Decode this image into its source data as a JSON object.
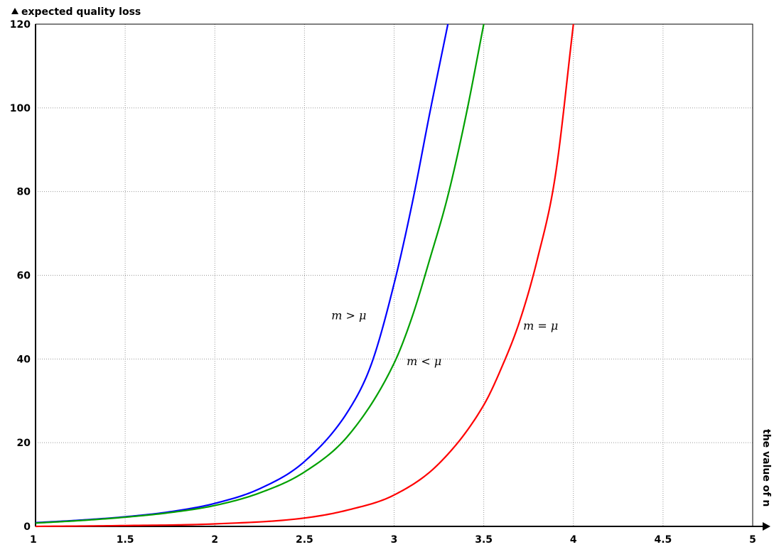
{
  "chart_data": {
    "type": "line",
    "ylabel": "expected quality loss",
    "xlabel": "the value of n",
    "xlim": [
      1,
      5
    ],
    "ylim": [
      0,
      120
    ],
    "x_ticks": [
      "1",
      "1.5",
      "2",
      "2.5",
      "3",
      "3.5",
      "4",
      "4.5",
      "5"
    ],
    "y_ticks": [
      "0",
      "20",
      "40",
      "60",
      "80",
      "100",
      "120"
    ],
    "grid": true,
    "series": [
      {
        "name": "m > μ",
        "color": "#0000ff",
        "x": [
          1,
          1.25,
          1.5,
          1.75,
          2,
          2.25,
          2.5,
          2.75,
          2.875,
          3,
          3.1,
          3.2,
          3.3
        ],
        "y": [
          0.9,
          1.5,
          2.3,
          3.5,
          5.5,
          9,
          15.5,
          28,
          39,
          58,
          77,
          99,
          120
        ]
      },
      {
        "name": "m < μ",
        "color": "#00a000",
        "x": [
          1,
          1.25,
          1.5,
          1.75,
          2,
          2.25,
          2.5,
          2.75,
          3,
          3.1,
          3.2,
          3.3,
          3.4,
          3.5
        ],
        "y": [
          0.8,
          1.4,
          2.2,
          3.3,
          5,
          8,
          13,
          22,
          39,
          50,
          64,
          79,
          98,
          120
        ]
      },
      {
        "name": "m = μ",
        "color": "#ff0000",
        "x": [
          1,
          1.5,
          2,
          2.5,
          2.75,
          3,
          3.25,
          3.5,
          3.6,
          3.7,
          3.8,
          3.9,
          4
        ],
        "y": [
          0,
          0.2,
          0.6,
          2,
          4,
          7.5,
          15,
          29,
          38,
          49,
          64,
          84,
          120
        ]
      }
    ],
    "annotations": [
      {
        "text": "m > μ",
        "x": 2.65,
        "y": 49.5
      },
      {
        "text": "m < μ",
        "x": 3.07,
        "y": 38.5
      },
      {
        "text": "m = μ",
        "x": 3.72,
        "y": 47
      }
    ]
  }
}
